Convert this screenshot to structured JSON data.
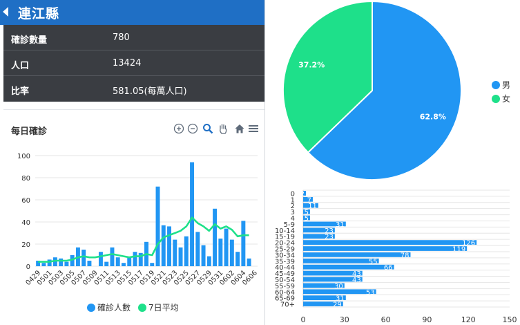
{
  "header": {
    "title": "連江縣"
  },
  "stats": [
    {
      "label": "確診數量",
      "value": "780"
    },
    {
      "label": "人口",
      "value": "13424"
    },
    {
      "label": "比率",
      "value": "581.05(每萬人口)"
    }
  ],
  "daily_chart": {
    "title": "每日確診",
    "toolbar_icons": [
      "zoom-in-icon",
      "zoom-out-icon",
      "magnifier-icon",
      "pan-hand-icon",
      "home-icon",
      "menu-icon"
    ],
    "legend": [
      {
        "name": "確診人數",
        "color": "#2196f3"
      },
      {
        "name": "7日平均",
        "color": "#1ee08a"
      }
    ]
  },
  "pie_legend": [
    {
      "name": "男",
      "color": "#2196f3"
    },
    {
      "name": "女",
      "color": "#1ee08a"
    }
  ],
  "chart_data": [
    {
      "type": "bar",
      "title": "每日確診",
      "ylim": [
        0,
        100
      ],
      "yticks": [
        0,
        20,
        40,
        60,
        80,
        100
      ],
      "xtick_labels": [
        "0429",
        "0501",
        "0503",
        "0505",
        "0507",
        "0509",
        "0511",
        "0513",
        "0515",
        "0517",
        "0519",
        "0521",
        "0523",
        "0525",
        "0527",
        "0529",
        "0531",
        "0602",
        "0604",
        "0606"
      ],
      "categories": [
        "0429",
        "0430",
        "0501",
        "0502",
        "0503",
        "0504",
        "0505",
        "0506",
        "0507",
        "0508",
        "0509",
        "0510",
        "0511",
        "0512",
        "0513",
        "0514",
        "0515",
        "0516",
        "0517",
        "0518",
        "0519",
        "0520",
        "0521",
        "0522",
        "0523",
        "0524",
        "0525",
        "0526",
        "0527",
        "0528",
        "0529",
        "0530",
        "0531",
        "0601",
        "0602",
        "0603",
        "0604",
        "0605",
        "0606"
      ],
      "series": [
        {
          "name": "確診人數",
          "type": "bar",
          "color": "#2196f3",
          "values": [
            5,
            3,
            6,
            8,
            7,
            4,
            10,
            17,
            15,
            5,
            0,
            13,
            4,
            17,
            8,
            3,
            8,
            13,
            12,
            22,
            3,
            72,
            37,
            36,
            24,
            17,
            27,
            94,
            31,
            19,
            9,
            52,
            25,
            34,
            24,
            13,
            41,
            7,
            0
          ]
        },
        {
          "name": "7日平均",
          "type": "line",
          "color": "#1ee08a",
          "values": [
            4,
            4,
            4,
            5,
            5,
            5,
            6,
            8,
            9,
            8,
            8,
            9,
            10,
            11,
            10,
            9,
            8,
            9,
            9,
            11,
            10,
            20,
            26,
            28,
            30,
            32,
            36,
            44,
            39,
            36,
            32,
            38,
            34,
            36,
            33,
            27,
            28,
            28,
            null
          ]
        }
      ],
      "legend_position": "bottom",
      "grid": true
    },
    {
      "type": "pie",
      "slices": [
        {
          "name": "男",
          "value": 62.8,
          "label": "62.8%",
          "color": "#2196f3"
        },
        {
          "name": "女",
          "value": 37.2,
          "label": "37.2%",
          "color": "#1ee08a"
        }
      ],
      "legend_position": "right"
    },
    {
      "type": "bar",
      "orientation": "horizontal",
      "categories": [
        "0",
        "1",
        "2",
        "3",
        "4",
        "5-9",
        "10-14",
        "15-19",
        "20-24",
        "25-29",
        "30-34",
        "35-39",
        "40-44",
        "45-49",
        "50-54",
        "55-59",
        "60-64",
        "65-69",
        "70+"
      ],
      "values": [
        2,
        7,
        11,
        5,
        5,
        31,
        23,
        23,
        126,
        119,
        78,
        55,
        66,
        43,
        43,
        30,
        53,
        31,
        29
      ],
      "xlim": [
        0,
        150
      ],
      "xticks": [
        0,
        30,
        60,
        90,
        120,
        150
      ],
      "color": "#2196f3",
      "grid": true
    }
  ]
}
